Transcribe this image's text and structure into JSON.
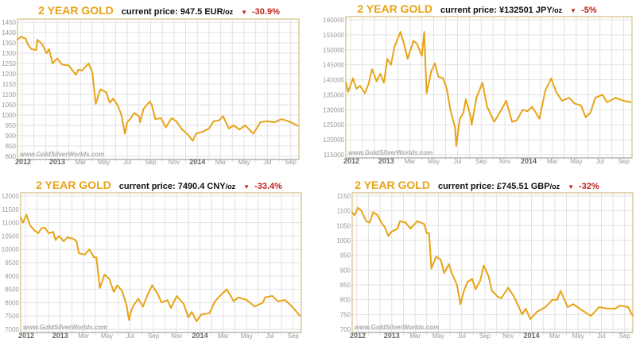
{
  "colors": {
    "line": "#e8a317",
    "title": "#e8a317",
    "down": "#c0211b",
    "grid": "#e2e2e2",
    "border": "#dccb9c"
  },
  "watermark": "www.GoldSilverWorlds.com",
  "chart_data": [
    {
      "type": "line",
      "title": "2 YEAR GOLD",
      "price_label": "current price: 947.5 EUR",
      "unit": "/oz",
      "change": "-30.9%",
      "direction": "down",
      "xlabel": "",
      "ylabel": "",
      "ylim": [
        800,
        1450
      ],
      "yticks": [
        800,
        850,
        900,
        950,
        1000,
        1050,
        1100,
        1150,
        1200,
        1250,
        1300,
        1350,
        1400,
        1450
      ],
      "xlim": [
        0,
        24.1
      ],
      "xticks": [
        {
          "label": "2012",
          "x": 0,
          "bold": true
        },
        {
          "label": "2013",
          "x": 3.4,
          "bold": true
        },
        {
          "label": "Mar",
          "x": 5.4
        },
        {
          "label": "May",
          "x": 7.4
        },
        {
          "label": "Jul",
          "x": 9.4
        },
        {
          "label": "Sep",
          "x": 11.4
        },
        {
          "label": "Nov",
          "x": 13.4
        },
        {
          "label": "2014",
          "x": 15.4,
          "bold": true
        },
        {
          "label": "Mar",
          "x": 17.4
        },
        {
          "label": "May",
          "x": 19.4
        },
        {
          "label": "Jul",
          "x": 21.4
        },
        {
          "label": "Sep",
          "x": 23.4
        }
      ],
      "x": [
        0,
        0.3,
        0.7,
        0.9,
        1.2,
        1.6,
        1.7,
        2.1,
        2.5,
        2.7,
        3.0,
        3.4,
        3.8,
        4.4,
        5.0,
        5.2,
        5.5,
        6.1,
        6.4,
        6.7,
        7.1,
        7.6,
        7.9,
        8.2,
        8.6,
        8.9,
        9.2,
        9.4,
        9.7,
        10.0,
        10.4,
        10.5,
        10.8,
        11.3,
        11.5,
        11.8,
        12.3,
        12.7,
        13.2,
        13.6,
        14.1,
        14.6,
        15.0,
        15.3,
        15.9,
        16.4,
        16.8,
        17.3,
        17.6,
        18.1,
        18.5,
        19.0,
        19.5,
        20.2,
        20.8,
        21.3,
        22.0,
        22.6,
        23.2,
        23.6,
        24.0
      ],
      "y": [
        1365,
        1380,
        1370,
        1340,
        1320,
        1315,
        1365,
        1345,
        1300,
        1320,
        1250,
        1275,
        1245,
        1240,
        1195,
        1220,
        1215,
        1250,
        1210,
        1055,
        1125,
        1110,
        1060,
        1080,
        1045,
        1000,
        910,
        965,
        985,
        1010,
        995,
        965,
        1030,
        1065,
        1050,
        980,
        985,
        940,
        985,
        970,
        930,
        905,
        875,
        910,
        920,
        935,
        970,
        975,
        995,
        935,
        950,
        930,
        950,
        910,
        965,
        970,
        965,
        980,
        970,
        960,
        948
      ]
    },
    {
      "type": "line",
      "title": "2 YEAR GOLD",
      "price_label": "current price: ¥132501 JPY",
      "unit": "/oz",
      "change": "-5%",
      "direction": "down",
      "xlabel": "",
      "ylabel": "",
      "ylim": [
        115000,
        160000
      ],
      "yticks": [
        115000,
        120000,
        125000,
        130000,
        135000,
        140000,
        145000,
        150000,
        155000,
        160000
      ],
      "xlim": [
        0,
        24.1
      ],
      "xticks": [
        {
          "label": "2012",
          "x": 0,
          "bold": true
        },
        {
          "label": "2013",
          "x": 3.4,
          "bold": true
        },
        {
          "label": "Mar",
          "x": 5.4
        },
        {
          "label": "May",
          "x": 7.4
        },
        {
          "label": "Jul",
          "x": 9.4
        },
        {
          "label": "Sep",
          "x": 11.4
        },
        {
          "label": "Nov",
          "x": 13.4
        },
        {
          "label": "2014",
          "x": 15.4,
          "bold": true
        },
        {
          "label": "Mar",
          "x": 17.4
        },
        {
          "label": "May",
          "x": 19.4
        },
        {
          "label": "Jul",
          "x": 21.4
        },
        {
          "label": "Sep",
          "x": 23.4
        }
      ],
      "x": [
        0,
        0.2,
        0.6,
        0.9,
        1.2,
        1.6,
        1.9,
        2.2,
        2.6,
        2.9,
        3.2,
        3.5,
        3.8,
        4.1,
        4.6,
        4.9,
        5.2,
        5.7,
        6.0,
        6.4,
        6.6,
        6.8,
        7.2,
        7.5,
        7.8,
        8.2,
        8.5,
        8.8,
        9.2,
        9.3,
        9.6,
        9.9,
        10.1,
        10.5,
        10.6,
        11.0,
        11.5,
        11.9,
        12.5,
        13.1,
        13.5,
        14.0,
        14.4,
        14.9,
        15.3,
        15.7,
        16.3,
        16.8,
        17.3,
        17.7,
        18.2,
        18.8,
        19.3,
        19.8,
        20.2,
        20.6,
        21.0,
        21.6,
        22.0,
        22.7,
        23.4,
        24.0
      ],
      "y": [
        139000,
        136000,
        140500,
        137000,
        138000,
        135500,
        138500,
        143500,
        139500,
        142000,
        139000,
        147000,
        145000,
        151000,
        156000,
        152000,
        147000,
        153000,
        152000,
        148000,
        156000,
        135500,
        143000,
        145500,
        141000,
        140500,
        137000,
        130000,
        124000,
        118000,
        127000,
        129000,
        133500,
        128000,
        125000,
        134000,
        139000,
        131000,
        126000,
        130000,
        133000,
        126000,
        126500,
        130000,
        129500,
        131000,
        127000,
        136500,
        140500,
        136000,
        133000,
        134000,
        132000,
        131500,
        127500,
        129000,
        134000,
        135000,
        132500,
        134000,
        133000,
        132500
      ]
    },
    {
      "type": "line",
      "title": "2 YEAR GOLD",
      "price_label": "current price: 7490.4 CNY",
      "unit": "/oz",
      "change": "-33.4%",
      "direction": "down",
      "xlabel": "",
      "ylabel": "",
      "ylim": [
        7000,
        12000
      ],
      "yticks": [
        7000,
        7500,
        8000,
        8500,
        9000,
        9500,
        10000,
        10500,
        11000,
        11500,
        12000
      ],
      "xlim": [
        0,
        24.1
      ],
      "xticks": [
        {
          "label": "2012",
          "x": 0,
          "bold": true
        },
        {
          "label": "2013",
          "x": 3.4,
          "bold": true
        },
        {
          "label": "Mar",
          "x": 5.4
        },
        {
          "label": "May",
          "x": 7.4
        },
        {
          "label": "Jul",
          "x": 9.4
        },
        {
          "label": "Sep",
          "x": 11.4
        },
        {
          "label": "Nov",
          "x": 13.4
        },
        {
          "label": "2014",
          "x": 15.4,
          "bold": true
        },
        {
          "label": "Mar",
          "x": 17.4
        },
        {
          "label": "May",
          "x": 19.4
        },
        {
          "label": "Jul",
          "x": 21.4
        },
        {
          "label": "Sep",
          "x": 23.4
        }
      ],
      "x": [
        0,
        0.2,
        0.5,
        0.8,
        1.2,
        1.5,
        1.8,
        2.1,
        2.4,
        2.8,
        3.0,
        3.3,
        3.7,
        4.0,
        4.5,
        4.8,
        5.0,
        5.5,
        5.9,
        6.3,
        6.5,
        6.8,
        7.2,
        7.6,
        8.0,
        8.3,
        8.7,
        9.1,
        9.3,
        9.5,
        9.7,
        10.1,
        10.5,
        10.9,
        11.3,
        11.8,
        12.1,
        12.6,
        12.9,
        13.4,
        14.0,
        14.4,
        14.7,
        15.1,
        15.5,
        16.2,
        16.7,
        17.1,
        17.7,
        18.3,
        18.7,
        19.4,
        20.1,
        20.8,
        21.0,
        21.6,
        22.1,
        22.7,
        23.3,
        24.0
      ],
      "y": [
        11200,
        11000,
        11300,
        10900,
        10700,
        10600,
        10800,
        10800,
        10600,
        10650,
        10350,
        10500,
        10300,
        10450,
        10400,
        10300,
        9850,
        9800,
        10000,
        9700,
        9700,
        8550,
        9050,
        8900,
        8400,
        8650,
        8450,
        7900,
        7350,
        7700,
        7900,
        8150,
        7850,
        8300,
        8650,
        8300,
        8000,
        8100,
        7800,
        8250,
        7950,
        7450,
        7650,
        7300,
        7550,
        7600,
        8050,
        8250,
        8500,
        8050,
        8200,
        8100,
        7850,
        8000,
        8200,
        8250,
        8050,
        8100,
        7850,
        7500
      ]
    },
    {
      "type": "line",
      "title": "2 YEAR GOLD",
      "price_label": "current price: £745.51 GBP",
      "unit": "/oz",
      "change": "-32%",
      "direction": "down",
      "xlabel": "",
      "ylabel": "",
      "ylim": [
        700,
        1150
      ],
      "yticks": [
        700,
        750,
        800,
        850,
        900,
        950,
        1000,
        1050,
        1100,
        1150
      ],
      "xlim": [
        0,
        24.1
      ],
      "xticks": [
        {
          "label": "2012",
          "x": 0,
          "bold": true
        },
        {
          "label": "2013",
          "x": 3.4,
          "bold": true
        },
        {
          "label": "Mar",
          "x": 5.4
        },
        {
          "label": "May",
          "x": 7.4
        },
        {
          "label": "Jul",
          "x": 9.4
        },
        {
          "label": "Sep",
          "x": 11.4
        },
        {
          "label": "Nov",
          "x": 13.4
        },
        {
          "label": "2014",
          "x": 15.4,
          "bold": true
        },
        {
          "label": "Mar",
          "x": 17.4
        },
        {
          "label": "May",
          "x": 19.4
        },
        {
          "label": "Jul",
          "x": 21.4
        },
        {
          "label": "Sep",
          "x": 23.4
        }
      ],
      "x": [
        0,
        0.2,
        0.5,
        0.8,
        1.2,
        1.5,
        1.8,
        2.2,
        2.5,
        2.8,
        3.1,
        3.4,
        3.9,
        4.1,
        4.6,
        5.0,
        5.6,
        6.2,
        6.4,
        6.6,
        6.8,
        7.2,
        7.6,
        7.9,
        8.3,
        8.6,
        9.0,
        9.3,
        9.6,
        9.9,
        10.3,
        10.6,
        11.0,
        11.3,
        11.7,
        12.0,
        12.5,
        12.8,
        13.4,
        13.9,
        14.6,
        14.9,
        15.3,
        15.9,
        16.6,
        17.2,
        17.6,
        17.9,
        18.5,
        19.0,
        19.7,
        20.5,
        21.2,
        21.9,
        22.6,
        23.0,
        23.7,
        24.1
      ],
      "y": [
        1095,
        1085,
        1110,
        1100,
        1065,
        1060,
        1095,
        1085,
        1060,
        1045,
        1015,
        1030,
        1040,
        1065,
        1060,
        1040,
        1065,
        1055,
        1025,
        1025,
        905,
        945,
        935,
        890,
        920,
        885,
        850,
        785,
        830,
        860,
        870,
        835,
        865,
        915,
        880,
        830,
        810,
        805,
        840,
        810,
        750,
        770,
        735,
        760,
        775,
        800,
        800,
        830,
        775,
        785,
        765,
        745,
        775,
        770,
        770,
        780,
        775,
        745
      ]
    }
  ]
}
